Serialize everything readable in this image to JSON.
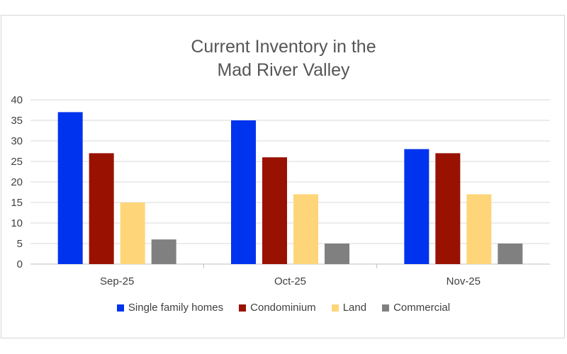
{
  "chart_data": {
    "type": "bar",
    "title": [
      "Current Inventory in the",
      "Mad River Valley"
    ],
    "categories": [
      "Sep-25",
      "Oct-25",
      "Nov-25"
    ],
    "series": [
      {
        "name": "Single family homes",
        "values": [
          37,
          35,
          28
        ],
        "color": "#0033ee"
      },
      {
        "name": "Condominium",
        "values": [
          27,
          26,
          27
        ],
        "color": "#991100"
      },
      {
        "name": "Land",
        "values": [
          15,
          17,
          17
        ],
        "color": "#ffd57a"
      },
      {
        "name": "Commercial",
        "values": [
          6,
          5,
          5
        ],
        "color": "#808080"
      }
    ],
    "ylim": [
      0,
      40
    ],
    "yticks": [
      0,
      5,
      10,
      15,
      20,
      25,
      30,
      35,
      40
    ],
    "grid": true,
    "legend_position": "bottom"
  }
}
